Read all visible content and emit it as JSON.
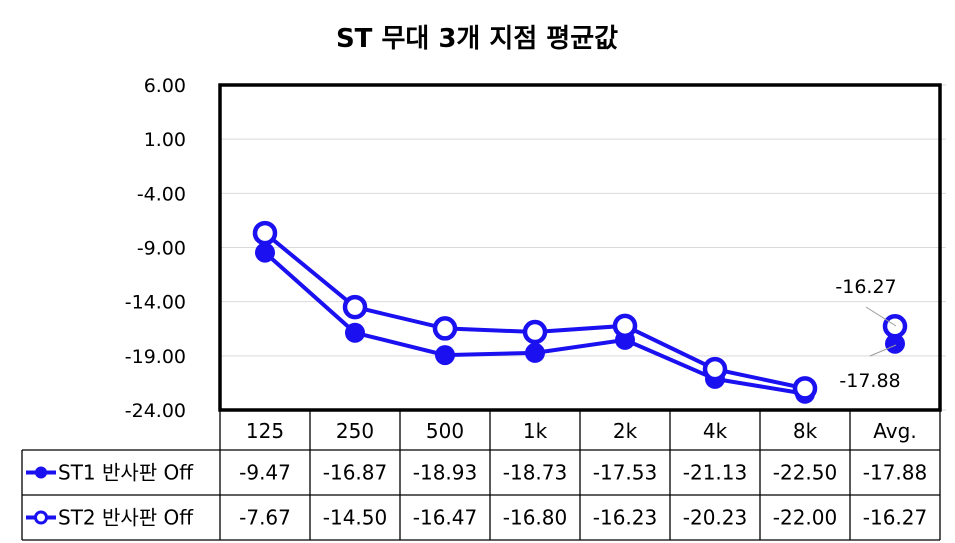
{
  "chart_data": {
    "type": "line",
    "title": "ST 무대 3개 지점 평균값",
    "categories": [
      "125",
      "250",
      "500",
      "1k",
      "2k",
      "4k",
      "8k",
      "Avg."
    ],
    "ylim": [
      -24,
      6
    ],
    "yticks": [
      "6.00",
      "1.00",
      "-4.00",
      "-9.00",
      "-14.00",
      "-19.00",
      "-24.00"
    ],
    "ytick_values": [
      6,
      1,
      -4,
      -9,
      -14,
      -19,
      -24
    ],
    "grid": true,
    "legend": "data-table",
    "color": "#1a10f0",
    "series": [
      {
        "name": "ST1 반사판 Off",
        "marker": "filled-circle",
        "values": [
          -9.47,
          -16.87,
          -18.93,
          -18.73,
          -17.53,
          -21.13,
          -22.5,
          -17.88
        ],
        "labels": [
          "-9.47",
          "-16.87",
          "-18.93",
          "-18.73",
          "-17.53",
          "-21.13",
          "-22.50",
          "-17.88"
        ]
      },
      {
        "name": "ST2 반사판 Off",
        "marker": "hollow-circle",
        "values": [
          -7.67,
          -14.5,
          -16.47,
          -16.8,
          -16.23,
          -20.23,
          -22.0,
          -16.27
        ],
        "labels": [
          "-7.67",
          "-14.50",
          "-16.47",
          "-16.80",
          "-16.23",
          "-20.23",
          "-22.00",
          "-16.27"
        ]
      }
    ],
    "annotations": [
      "-16.27",
      "-17.88"
    ]
  }
}
